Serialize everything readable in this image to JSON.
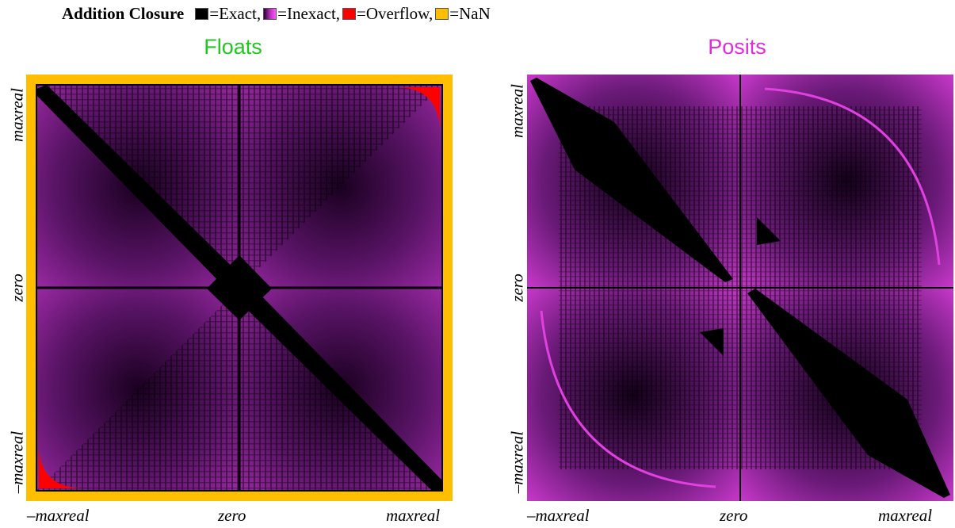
{
  "legend": {
    "heading": "Addition Closure",
    "items": [
      {
        "label": "=Exact,",
        "color": "#000000"
      },
      {
        "label": "=Inexact,",
        "color": "#b52fb8"
      },
      {
        "label": "=Overflow,",
        "color": "#ff0000"
      },
      {
        "label": "=NaN",
        "color": "#ffbf00"
      }
    ]
  },
  "chart_data": [
    {
      "type": "heatmap",
      "title": "Floats",
      "title_color": "#1fc81f",
      "x_tick_labels": [
        "–maxreal",
        "zero",
        "maxreal"
      ],
      "y_tick_labels": [
        "–maxreal",
        "zero",
        "maxreal"
      ],
      "categories": [
        "Exact",
        "Inexact",
        "Overflow",
        "NaN"
      ],
      "colors": {
        "exact": "#000000",
        "inexact": "#b52fb8",
        "overflow": "#ff0000",
        "nan": "#ffbf00"
      },
      "nan_border": true,
      "overflow_corners": [
        "top-right",
        "bottom-left"
      ]
    },
    {
      "type": "heatmap",
      "title": "Posits",
      "title_color": "#e02be0",
      "x_tick_labels": [
        "–maxreal",
        "zero",
        "maxreal"
      ],
      "y_tick_labels": [
        "–maxreal",
        "zero",
        "maxreal"
      ],
      "categories": [
        "Exact",
        "Inexact"
      ],
      "colors": {
        "exact": "#000000",
        "inexact": "#e040e0"
      },
      "nan_border": false,
      "overflow_corners": []
    }
  ]
}
